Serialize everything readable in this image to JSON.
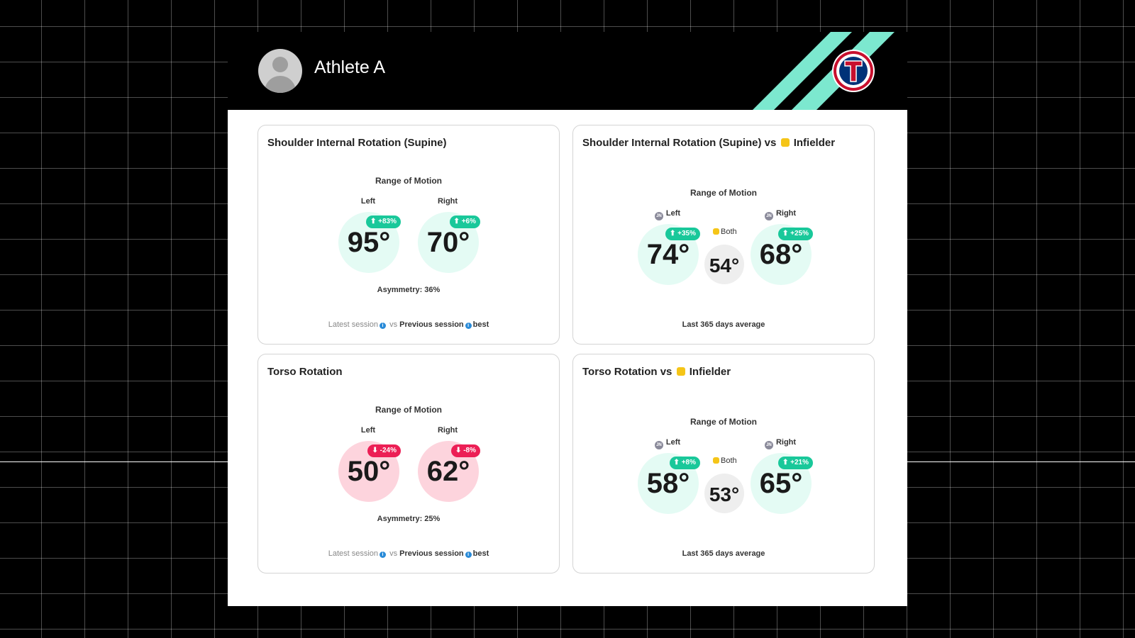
{
  "header": {
    "athlete_name": "Athlete A",
    "logo_icon": "rangers-logo-icon"
  },
  "colors": {
    "improve": "#19c89a",
    "decline": "#ec1f55",
    "positive_fill": "#e4fbf4",
    "negative_fill": "#fdd4dd",
    "both_fill": "#eeeeee",
    "stripe": "#7ce8cf"
  },
  "cards": [
    {
      "title": "Shoulder Internal Rotation (Supine)",
      "section": "Range of Motion",
      "left_label": "Left",
      "right_label": "Right",
      "left_value": "95°",
      "left_change": "+83%",
      "right_value": "70°",
      "right_change": "+6%",
      "asymmetry": "Asymmetry: 36%",
      "footer": {
        "latest": "Latest session",
        "vs": "vs",
        "previous": "Previous session",
        "best": "best"
      }
    },
    {
      "title_prefix": "Shoulder Internal Rotation (Supine) vs",
      "title_group": "Infielder",
      "section": "Range of Motion",
      "left_label": "Left",
      "right_label": "Right",
      "both_label": "Both",
      "left_value": "74°",
      "left_change": "+35%",
      "both_value": "54°",
      "right_value": "68°",
      "right_change": "+25%",
      "footer": "Last 365 days average"
    },
    {
      "title": "Torso Rotation",
      "section": "Range of Motion",
      "left_label": "Left",
      "right_label": "Right",
      "left_value": "50°",
      "left_change": "-24%",
      "right_value": "62°",
      "right_change": "-8%",
      "asymmetry": "Asymmetry: 25%",
      "footer": {
        "latest": "Latest session",
        "vs": "vs",
        "previous": "Previous session",
        "best": "best"
      }
    },
    {
      "title_prefix": "Torso Rotation vs",
      "title_group": "Infielder",
      "section": "Range of Motion",
      "left_label": "Left",
      "right_label": "Right",
      "both_label": "Both",
      "left_value": "58°",
      "left_change": "+8%",
      "both_value": "53°",
      "right_value": "65°",
      "right_change": "+21%",
      "footer": "Last 365 days average"
    }
  ]
}
